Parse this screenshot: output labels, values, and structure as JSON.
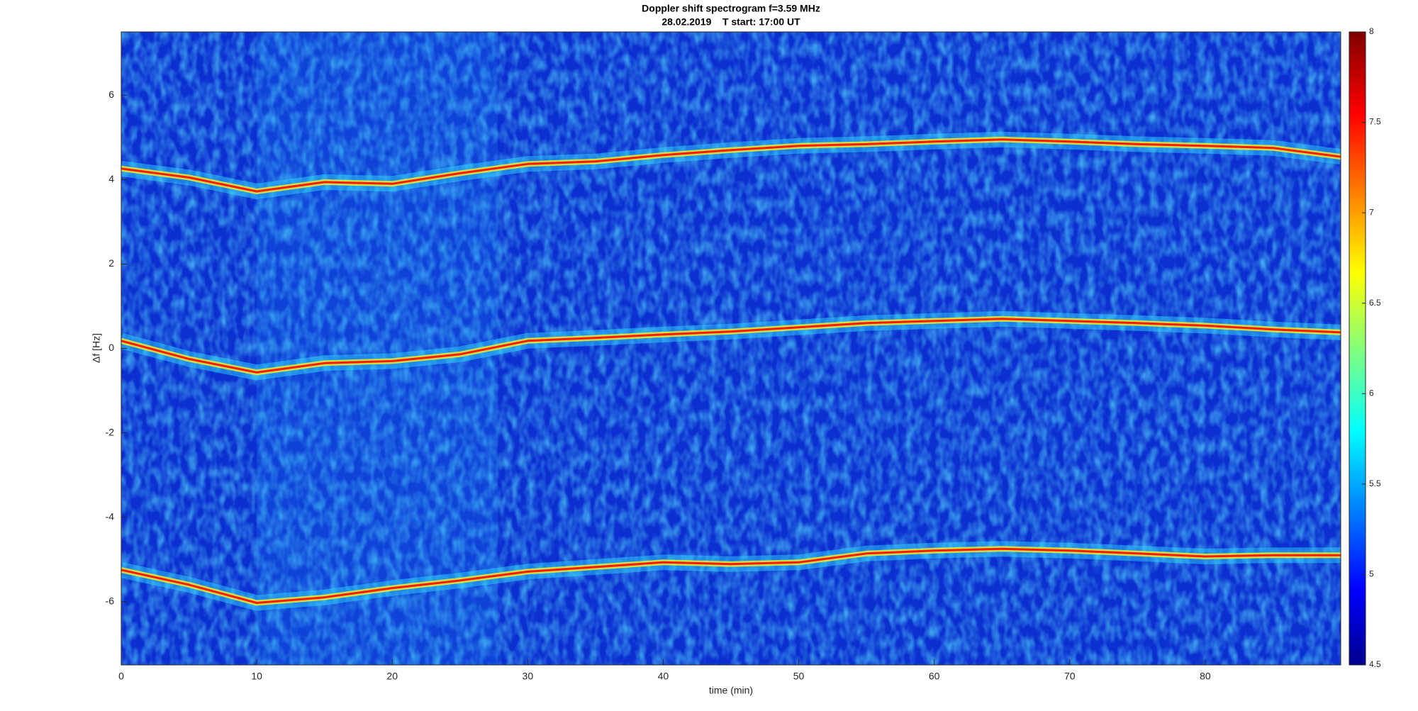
{
  "chart_data": {
    "type": "spectrogram",
    "title": "Doppler shift spectrogram f=3.59 MHz",
    "subtitle": "28.02.2019    T start: 17:00 UT",
    "xlabel": "time (min)",
    "ylabel": "Δf [Hz]",
    "xlim": [
      0,
      90
    ],
    "xticks": [
      0,
      10,
      20,
      30,
      40,
      50,
      60,
      70,
      80
    ],
    "ylim": [
      -7.5,
      7.5
    ],
    "yticks": [
      -6,
      -4,
      -2,
      0,
      2,
      4,
      6
    ],
    "colormap": "jet",
    "clim": [
      4.5,
      8
    ],
    "cticks": [
      4.5,
      5,
      5.5,
      6,
      6.5,
      7,
      7.5,
      8
    ],
    "x": [
      0,
      5,
      10,
      15,
      20,
      25,
      30,
      35,
      40,
      45,
      50,
      55,
      60,
      65,
      70,
      75,
      80,
      85,
      90
    ],
    "series": [
      {
        "color": "#ff1a00",
        "values": [
          4.26,
          4.05,
          3.72,
          3.94,
          3.9,
          4.15,
          4.37,
          4.43,
          4.58,
          4.7,
          4.8,
          4.84,
          4.9,
          4.95,
          4.9,
          4.84,
          4.8,
          4.75,
          4.54
        ]
      },
      {
        "color": "#ff1a00",
        "values": [
          0.18,
          -0.25,
          -0.57,
          -0.35,
          -0.3,
          -0.14,
          0.18,
          0.25,
          0.33,
          0.4,
          0.5,
          0.6,
          0.65,
          0.7,
          0.65,
          0.6,
          0.54,
          0.45,
          0.38
        ]
      },
      {
        "color": "#ff1a00",
        "values": [
          -5.25,
          -5.6,
          -6.03,
          -5.9,
          -5.68,
          -5.5,
          -5.29,
          -5.18,
          -5.07,
          -5.11,
          -5.07,
          -4.86,
          -4.79,
          -4.75,
          -4.79,
          -4.86,
          -4.93,
          -4.9,
          -4.9
        ]
      }
    ]
  }
}
